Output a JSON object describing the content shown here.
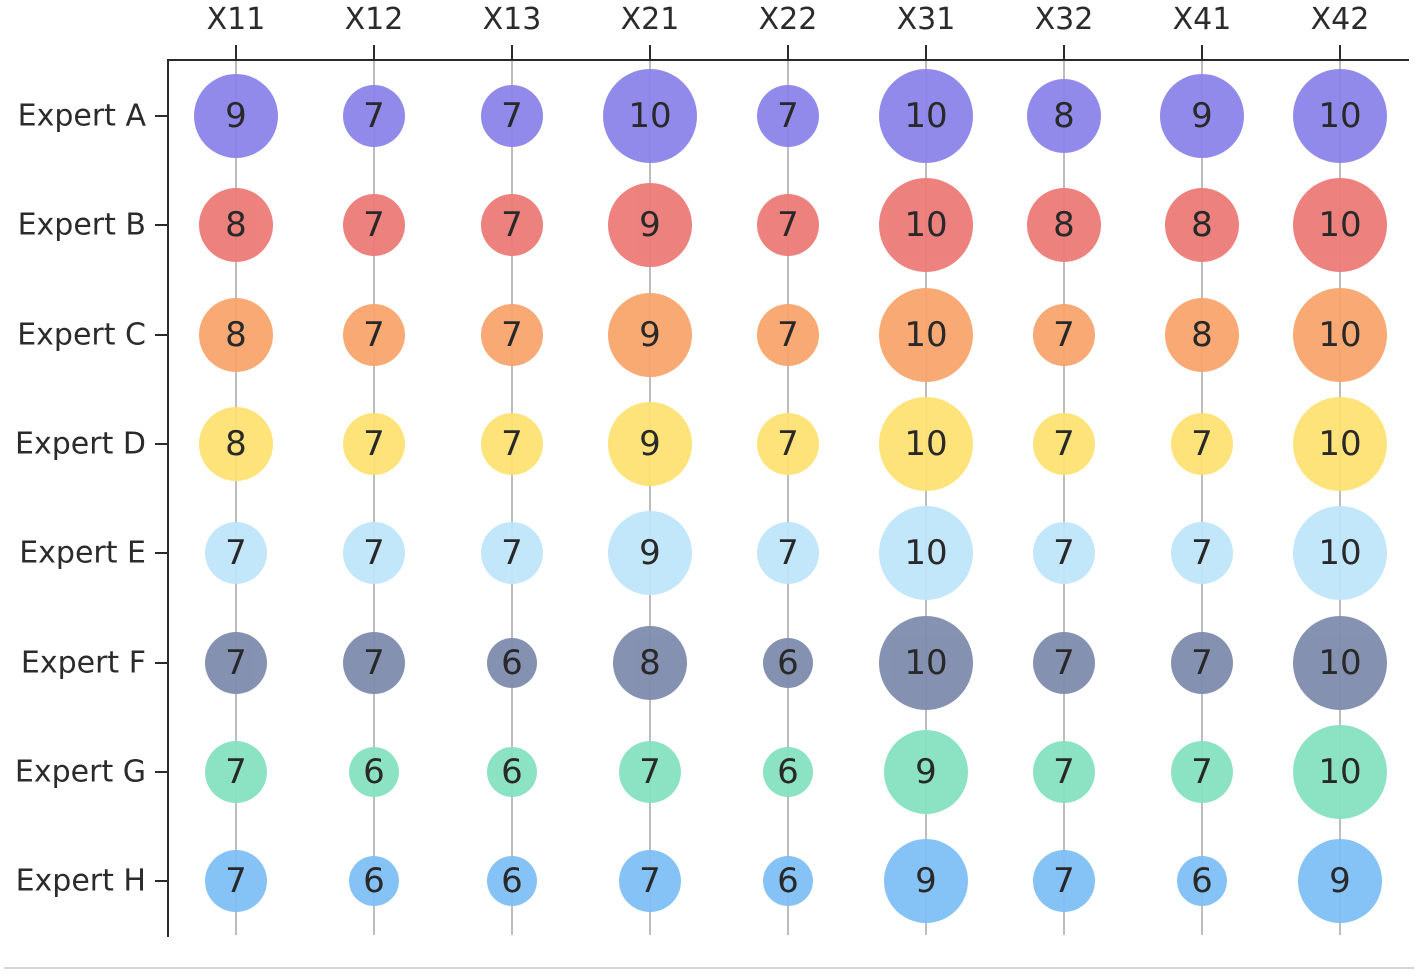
{
  "chart_data": {
    "type": "bubble-matrix",
    "title": "",
    "xlabel": "",
    "ylabel": "",
    "categories": [
      "X11",
      "X12",
      "X13",
      "X21",
      "X22",
      "X31",
      "X32",
      "X41",
      "X42"
    ],
    "rows": [
      "Expert A",
      "Expert B",
      "Expert C",
      "Expert D",
      "Expert E",
      "Expert F",
      "Expert G",
      "Expert H"
    ],
    "series": [
      {
        "name": "Expert A",
        "color": "#8c84ea",
        "values": [
          9,
          7,
          7,
          10,
          7,
          10,
          8,
          9,
          10
        ]
      },
      {
        "name": "Expert B",
        "color": "#ec7b78",
        "values": [
          8,
          7,
          7,
          9,
          7,
          10,
          8,
          8,
          10
        ]
      },
      {
        "name": "Expert C",
        "color": "#f9a56c",
        "values": [
          8,
          7,
          7,
          9,
          7,
          10,
          7,
          8,
          10
        ]
      },
      {
        "name": "Expert D",
        "color": "#fde272",
        "values": [
          8,
          7,
          7,
          9,
          7,
          10,
          7,
          7,
          10
        ]
      },
      {
        "name": "Expert E",
        "color": "#bfe5fa",
        "values": [
          7,
          7,
          7,
          9,
          7,
          10,
          7,
          7,
          10
        ]
      },
      {
        "name": "Expert F",
        "color": "#7f8cad",
        "values": [
          7,
          7,
          6,
          8,
          6,
          10,
          7,
          7,
          10
        ]
      },
      {
        "name": "Expert G",
        "color": "#86e2c0",
        "values": [
          7,
          6,
          6,
          7,
          6,
          9,
          7,
          7,
          10
        ]
      },
      {
        "name": "Expert H",
        "color": "#7fbff5",
        "values": [
          7,
          6,
          6,
          7,
          6,
          9,
          7,
          6,
          9
        ]
      }
    ],
    "size_encoding": "bubble radius proportional to score",
    "label_in_bubble": true,
    "x_axis_position": "top",
    "y_axis_position": "left",
    "grid": "vertical lines through each column"
  }
}
